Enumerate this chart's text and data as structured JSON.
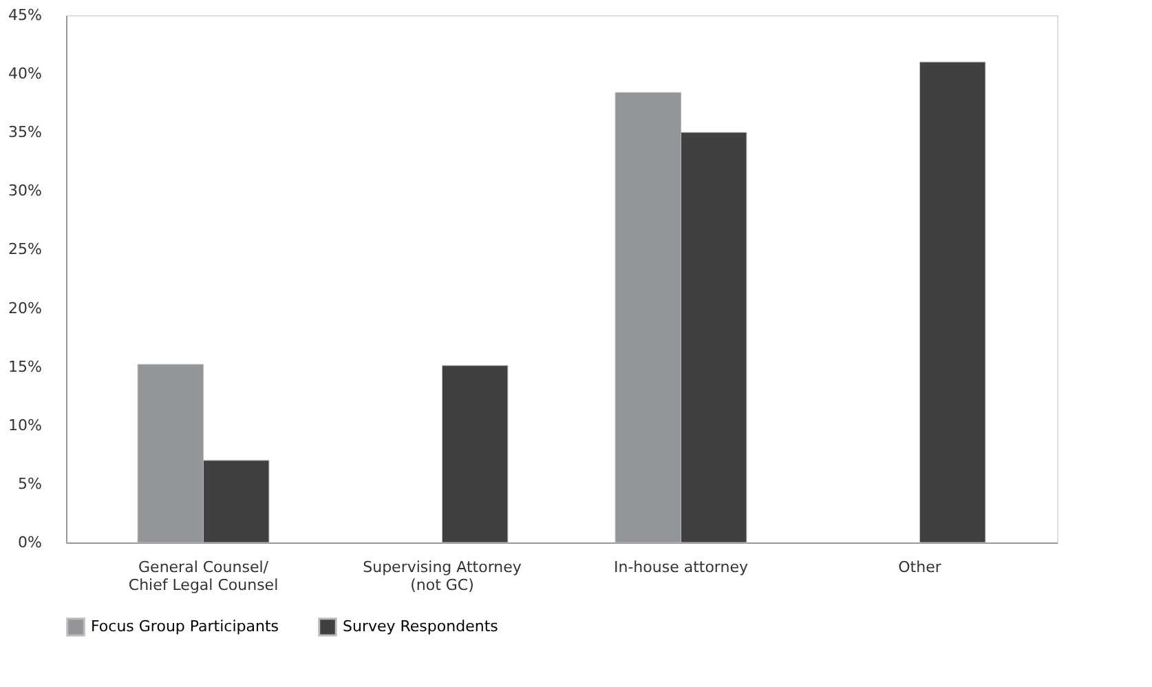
{
  "chart_data": {
    "type": "bar",
    "categories": [
      "General Counsel/\nChief Legal Counsel",
      "Supervising Attorney\n(not GC)",
      "In-house attorney",
      "Other"
    ],
    "series": [
      {
        "name": "Focus Group Participants",
        "color": "#939598",
        "values": [
          15.2,
          null,
          38.4,
          null
        ]
      },
      {
        "name": "Survey Respondents",
        "color": "#404040",
        "values": [
          7.0,
          15.1,
          35.0,
          41.0
        ]
      }
    ],
    "ylim": [
      0,
      45
    ],
    "yticks": [
      {
        "value": 0,
        "label": "0%"
      },
      {
        "value": 5,
        "label": "5%"
      },
      {
        "value": 10,
        "label": "10%"
      },
      {
        "value": 15,
        "label": "15%"
      },
      {
        "value": 20,
        "label": "20%"
      },
      {
        "value": 25,
        "label": "25%"
      },
      {
        "value": 30,
        "label": "30%"
      },
      {
        "value": 35,
        "label": "35%"
      },
      {
        "value": 40,
        "label": "40%"
      },
      {
        "value": 45,
        "label": "45%"
      }
    ],
    "grid": false,
    "legend": "bottom"
  }
}
